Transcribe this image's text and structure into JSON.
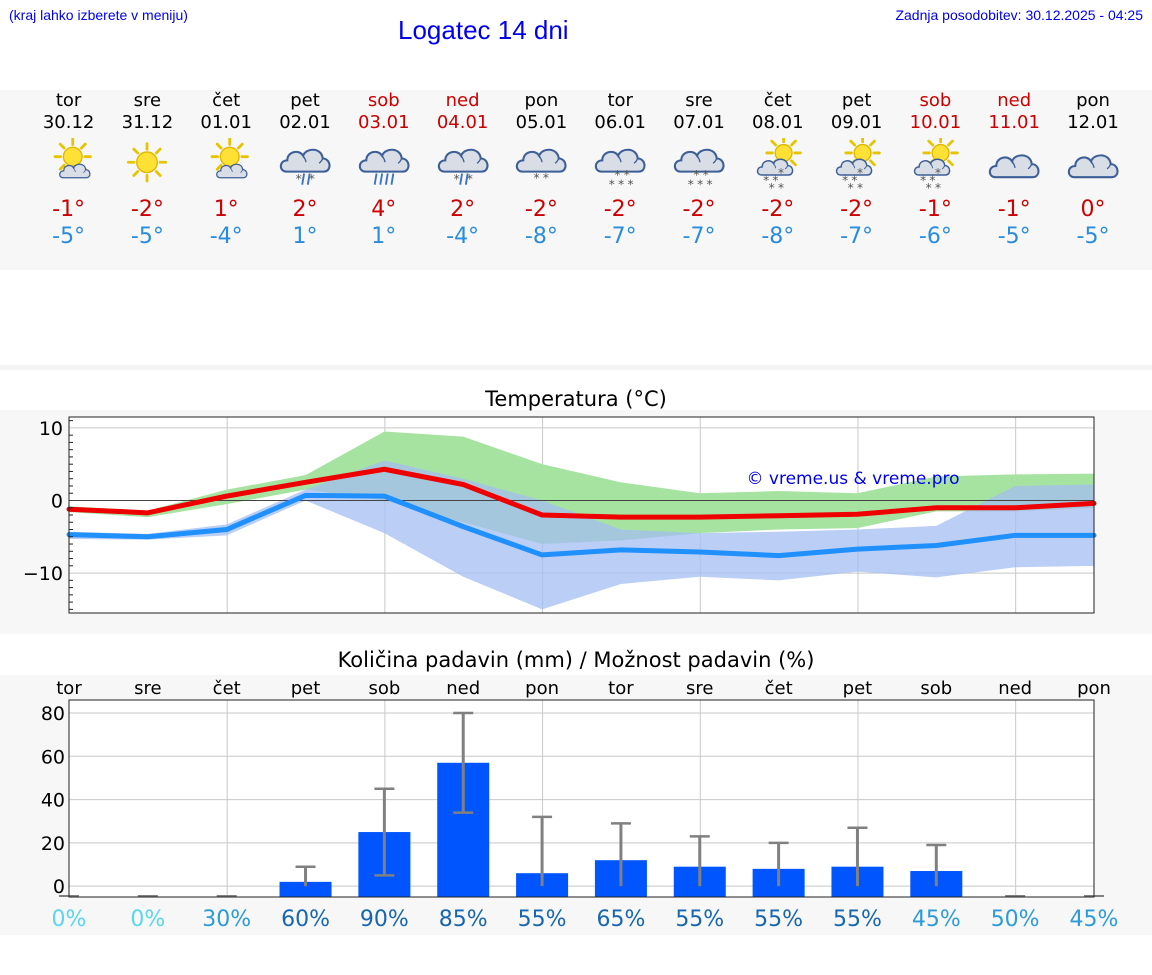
{
  "header": {
    "menu_hint": "(kraj lahko izberete v meniju)",
    "title": "Logatec 14 dni",
    "updated": "Zadnja posodobitev: 30.12.2025 - 04:25"
  },
  "colors": {
    "weekday": "#000000",
    "weekend": "#cc0000",
    "max_temp": "#cc0000",
    "min_temp": "#2a8cdc",
    "bar": "#0055ff",
    "band_max": "#a6e3a1",
    "band_min": "#a3bdf3",
    "band_overlap": "#7ccaa2",
    "watermark": "#0000ee"
  },
  "days": [
    {
      "name": "tor",
      "date": "30.12",
      "weekend": false,
      "icon": "sun-cloud-icon",
      "tmax": "-1°",
      "tmin": "-5°"
    },
    {
      "name": "sre",
      "date": "31.12",
      "weekend": false,
      "icon": "sun-icon",
      "tmax": "-2°",
      "tmin": "-5°"
    },
    {
      "name": "čet",
      "date": "01.01",
      "weekend": false,
      "icon": "sun-cloud-icon",
      "tmax": "1°",
      "tmin": "-4°"
    },
    {
      "name": "pet",
      "date": "02.01",
      "weekend": false,
      "icon": "cloud-sleet-icon",
      "tmax": "2°",
      "tmin": "1°"
    },
    {
      "name": "sob",
      "date": "03.01",
      "weekend": true,
      "icon": "cloud-rain-icon",
      "tmax": "4°",
      "tmin": "1°"
    },
    {
      "name": "ned",
      "date": "04.01",
      "weekend": true,
      "icon": "cloud-sleet-icon",
      "tmax": "2°",
      "tmin": "-4°"
    },
    {
      "name": "pon",
      "date": "05.01",
      "weekend": false,
      "icon": "cloud-snow-light-icon",
      "tmax": "-2°",
      "tmin": "-8°"
    },
    {
      "name": "tor",
      "date": "06.01",
      "weekend": false,
      "icon": "cloud-snow-icon",
      "tmax": "-2°",
      "tmin": "-7°"
    },
    {
      "name": "sre",
      "date": "07.01",
      "weekend": false,
      "icon": "cloud-snow-icon",
      "tmax": "-2°",
      "tmin": "-7°"
    },
    {
      "name": "čet",
      "date": "08.01",
      "weekend": false,
      "icon": "sun-cloud-snow-icon",
      "tmax": "-2°",
      "tmin": "-8°"
    },
    {
      "name": "pet",
      "date": "09.01",
      "weekend": false,
      "icon": "sun-cloud-snow-icon",
      "tmax": "-2°",
      "tmin": "-7°"
    },
    {
      "name": "sob",
      "date": "10.01",
      "weekend": true,
      "icon": "sun-cloud-snow-icon",
      "tmax": "-1°",
      "tmin": "-6°"
    },
    {
      "name": "ned",
      "date": "11.01",
      "weekend": true,
      "icon": "cloud-icon",
      "tmax": "-1°",
      "tmin": "-5°"
    },
    {
      "name": "pon",
      "date": "12.01",
      "weekend": false,
      "icon": "cloud-icon",
      "tmax": "0°",
      "tmin": "-5°"
    }
  ],
  "chart_data": [
    {
      "type": "line",
      "title": "Temperatura (°C)",
      "watermark": "© vreme.us & vreme.pro",
      "x": [
        0,
        1,
        2,
        3,
        4,
        5,
        6,
        7,
        8,
        9,
        10,
        11,
        12,
        13
      ],
      "ylim": [
        -15.5,
        11.5
      ],
      "yticks": [
        10,
        0,
        -10
      ],
      "ytick_labels": [
        "10",
        "0",
        "−10"
      ],
      "series": [
        {
          "name": "max",
          "color": "#ee0000",
          "values": [
            -1.2,
            -1.7,
            0.6,
            2.5,
            4.3,
            2.2,
            -2.0,
            -2.3,
            -2.3,
            -2.1,
            -1.9,
            -1.0,
            -1.0,
            -0.4
          ]
        },
        {
          "name": "min",
          "color": "#2090ff",
          "values": [
            -4.7,
            -5.0,
            -4.0,
            0.7,
            0.6,
            -3.6,
            -7.5,
            -6.8,
            -7.1,
            -7.6,
            -6.7,
            -6.2,
            -4.8,
            -4.8
          ]
        }
      ],
      "bands": [
        {
          "name": "max-range",
          "color": "#a6e3a1",
          "lower": [
            -1.6,
            -2.3,
            -0.5,
            1.5,
            0.0,
            -3.0,
            -6.0,
            -5.5,
            -4.5,
            -4.0,
            -3.8,
            -1.5,
            -1.5,
            -1.0
          ],
          "upper": [
            -0.8,
            -1.4,
            1.5,
            3.5,
            9.5,
            8.8,
            5.0,
            2.5,
            1.0,
            1.3,
            1.0,
            3.3,
            3.6,
            3.7
          ]
        },
        {
          "name": "min-range",
          "color": "#a3bdf3",
          "lower": [
            -5.3,
            -5.4,
            -4.8,
            0.0,
            -4.5,
            -10.5,
            -15.0,
            -11.5,
            -10.5,
            -11.0,
            -9.8,
            -10.6,
            -9.2,
            -9.0
          ],
          "upper": [
            -4.3,
            -4.6,
            -3.3,
            1.5,
            5.5,
            3.0,
            0.0,
            -4.0,
            -4.5,
            -4.3,
            -4.0,
            -3.5,
            2.0,
            2.2
          ]
        }
      ]
    },
    {
      "type": "bar",
      "title": "Količina padavin (mm) / Možnost padavin (%)",
      "categories": [
        "tor",
        "sre",
        "čet",
        "pet",
        "sob",
        "ned",
        "pon",
        "tor",
        "sre",
        "čet",
        "pet",
        "sob",
        "ned",
        "pon"
      ],
      "values": [
        0,
        0,
        0,
        2,
        25,
        57,
        6,
        12,
        9,
        8,
        9,
        7,
        0,
        0
      ],
      "error_low": [
        0,
        0,
        0,
        0,
        5,
        34,
        0,
        0,
        0,
        0,
        0,
        0,
        0,
        0
      ],
      "error_high": [
        0,
        0,
        0,
        9,
        45,
        80,
        32,
        29,
        23,
        20,
        27,
        19,
        0,
        0
      ],
      "ylim": [
        -5,
        86
      ],
      "yticks": [
        80,
        60,
        40,
        20,
        0
      ],
      "ytick_labels": [
        "80",
        "60",
        "40",
        "20",
        "0"
      ],
      "probability": [
        "0%",
        "0%",
        "30%",
        "60%",
        "90%",
        "85%",
        "55%",
        "65%",
        "55%",
        "55%",
        "55%",
        "45%",
        "50%",
        "45%"
      ],
      "probability_colors": [
        "#5ad6f0",
        "#5ad6f0",
        "#2d9bd9",
        "#1766b0",
        "#1766b0",
        "#1766b0",
        "#1766b0",
        "#1766b0",
        "#1766b0",
        "#1766b0",
        "#1766b0",
        "#2d9bd9",
        "#2d9bd9",
        "#2d9bd9"
      ]
    }
  ]
}
